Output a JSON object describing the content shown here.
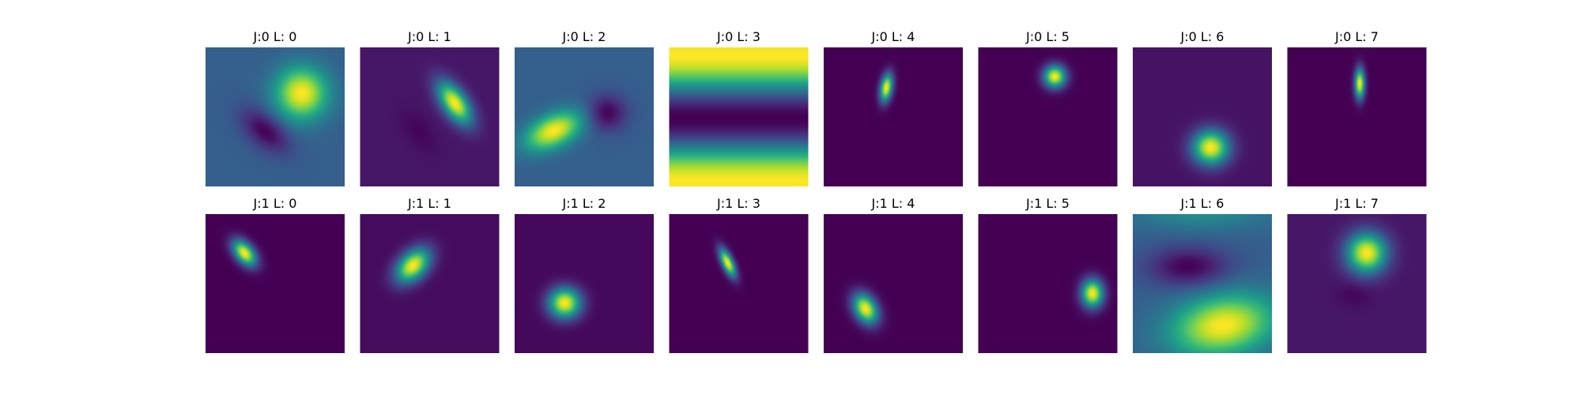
{
  "chart_data": {
    "type": "heatmap",
    "colormap": "viridis",
    "value_range": [
      0,
      1
    ],
    "grid": "off",
    "panels": [
      {
        "title": "J:0 L: 0",
        "background": 0.3,
        "blobs": [
          {
            "cx": 0.69,
            "cy": 0.33,
            "sx": 0.13,
            "sy": 0.13,
            "theta": 0,
            "amp": 0.7
          },
          {
            "cx": 0.43,
            "cy": 0.6,
            "sx": 0.14,
            "sy": 0.08,
            "theta": 40,
            "amp": -0.3
          }
        ]
      },
      {
        "title": "J:0 L: 1",
        "background": 0.06,
        "blobs": [
          {
            "cx": 0.68,
            "cy": 0.4,
            "sx": 0.06,
            "sy": 0.12,
            "theta": -35,
            "amp": 0.94
          },
          {
            "cx": 0.42,
            "cy": 0.6,
            "sx": 0.06,
            "sy": 0.12,
            "theta": -35,
            "amp": -0.05
          }
        ]
      },
      {
        "title": "J:0 L: 2",
        "background": 0.3,
        "blobs": [
          {
            "cx": 0.28,
            "cy": 0.6,
            "sx": 0.15,
            "sy": 0.08,
            "theta": -25,
            "amp": 0.7
          },
          {
            "cx": 0.66,
            "cy": 0.47,
            "sx": 0.1,
            "sy": 0.09,
            "theta": 0,
            "amp": -0.3
          }
        ]
      },
      {
        "title": "J:0 L: 3",
        "stripes": true,
        "period": 0.92,
        "phase": 0.05
      },
      {
        "title": "J:0 L: 4",
        "background": 0.0,
        "blobs": [
          {
            "cx": 0.45,
            "cy": 0.29,
            "sx": 0.03,
            "sy": 0.07,
            "theta": 10,
            "amp": 1.0
          }
        ]
      },
      {
        "title": "J:0 L: 5",
        "background": 0.0,
        "blobs": [
          {
            "cx": 0.55,
            "cy": 0.21,
            "sx": 0.055,
            "sy": 0.055,
            "theta": 0,
            "amp": 1.0
          }
        ]
      },
      {
        "title": "J:0 L: 6",
        "background": 0.05,
        "blobs": [
          {
            "cx": 0.56,
            "cy": 0.72,
            "sx": 0.09,
            "sy": 0.085,
            "theta": 0,
            "amp": 0.95
          }
        ]
      },
      {
        "title": "J:0 L: 7",
        "background": 0.0,
        "blobs": [
          {
            "cx": 0.52,
            "cy": 0.26,
            "sx": 0.025,
            "sy": 0.075,
            "theta": 0,
            "amp": 1.0
          }
        ]
      },
      {
        "title": "J:1 L: 0",
        "background": 0.0,
        "blobs": [
          {
            "cx": 0.28,
            "cy": 0.28,
            "sx": 0.045,
            "sy": 0.075,
            "theta": -40,
            "amp": 1.0
          }
        ]
      },
      {
        "title": "J:1 L: 1",
        "background": 0.03,
        "blobs": [
          {
            "cx": 0.38,
            "cy": 0.37,
            "sx": 0.065,
            "sy": 0.1,
            "theta": 45,
            "amp": 0.97
          }
        ]
      },
      {
        "title": "J:1 L: 2",
        "background": 0.02,
        "blobs": [
          {
            "cx": 0.36,
            "cy": 0.64,
            "sx": 0.08,
            "sy": 0.075,
            "theta": 0,
            "amp": 0.98
          }
        ]
      },
      {
        "title": "J:1 L: 3",
        "background": 0.0,
        "blobs": [
          {
            "cx": 0.42,
            "cy": 0.35,
            "sx": 0.028,
            "sy": 0.075,
            "theta": -25,
            "amp": 1.0
          }
        ]
      },
      {
        "title": "J:1 L: 4",
        "background": 0.0,
        "blobs": [
          {
            "cx": 0.3,
            "cy": 0.68,
            "sx": 0.055,
            "sy": 0.08,
            "theta": -30,
            "amp": 1.0
          }
        ]
      },
      {
        "title": "J:1 L: 5",
        "background": 0.0,
        "blobs": [
          {
            "cx": 0.82,
            "cy": 0.57,
            "sx": 0.055,
            "sy": 0.07,
            "theta": 0,
            "amp": 1.0
          }
        ]
      },
      {
        "title": "J:1 L: 6",
        "background": 0.3,
        "blobs": [
          {
            "cx": 0.65,
            "cy": 0.8,
            "sx": 0.26,
            "sy": 0.15,
            "theta": -10,
            "amp": 0.7
          },
          {
            "cx": 0.4,
            "cy": 0.38,
            "sx": 0.2,
            "sy": 0.1,
            "theta": 0,
            "amp": -0.3
          },
          {
            "cx": 0.5,
            "cy": -0.02,
            "sx": 0.35,
            "sy": 0.09,
            "theta": 0,
            "amp": 0.2
          }
        ]
      },
      {
        "title": "J:1 L: 7",
        "background": 0.06,
        "blobs": [
          {
            "cx": 0.57,
            "cy": 0.28,
            "sx": 0.1,
            "sy": 0.1,
            "theta": 0,
            "amp": 0.94
          },
          {
            "cx": 0.48,
            "cy": 0.58,
            "sx": 0.08,
            "sy": 0.06,
            "theta": 0,
            "amp": -0.05
          }
        ]
      }
    ]
  }
}
